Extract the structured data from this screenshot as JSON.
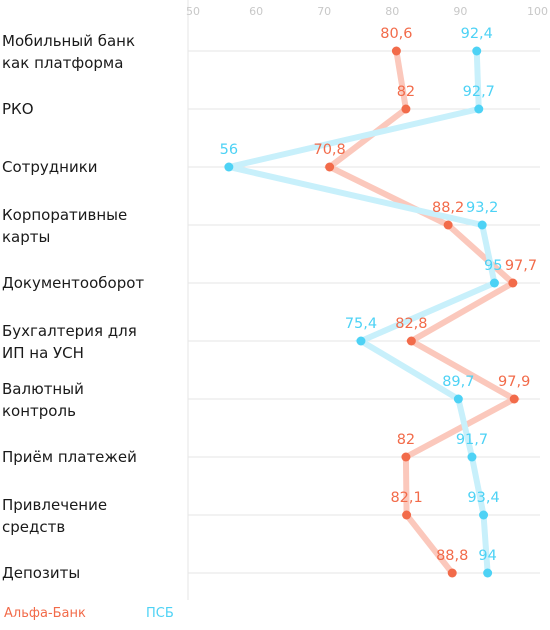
{
  "chart_data": {
    "type": "line",
    "orientation": "horizontal",
    "categories": [
      [
        "Мобильный банк",
        "как платформа"
      ],
      [
        "РКО"
      ],
      [
        "Сотрудники"
      ],
      [
        "Корпоративные",
        "карты"
      ],
      [
        "Документооборот"
      ],
      [
        "Бухгалтерия для",
        "ИП на УСН"
      ],
      [
        "Валютный",
        "контроль"
      ],
      [
        "Приём платежей"
      ],
      [
        "Привлечение",
        "средств"
      ],
      [
        "Депозиты"
      ]
    ],
    "x_ticks": [
      "50",
      "60",
      "70",
      "80",
      "90",
      "100"
    ],
    "xlim": [
      50,
      100
    ],
    "grid": true,
    "legend_position": "bottom-left",
    "series": [
      {
        "name": "Альфа-Банк",
        "color": "#f26b4a",
        "line_color": "#fbc8bc",
        "values": [
          80.6,
          82,
          70.8,
          88.2,
          97.7,
          82.8,
          97.9,
          82,
          82.1,
          88.8
        ],
        "labels": [
          "80,6",
          "82",
          "70,8",
          "88,2",
          "97,7",
          "82,8",
          "97,9",
          "82",
          "82,1",
          "88,8"
        ]
      },
      {
        "name": "ПСБ",
        "color": "#4dd2f5",
        "line_color": "#c8f0fb",
        "values": [
          92.4,
          92.7,
          56,
          93.2,
          95,
          75.4,
          89.7,
          91.7,
          93.4,
          94
        ],
        "labels": [
          "92,4",
          "92,7",
          "56",
          "93,2",
          "95",
          "75,4",
          "89,7",
          "91,7",
          "93,4",
          "94"
        ]
      }
    ]
  },
  "legend": {
    "alfa": "Альфа-Банк",
    "psb": "ПСБ"
  }
}
